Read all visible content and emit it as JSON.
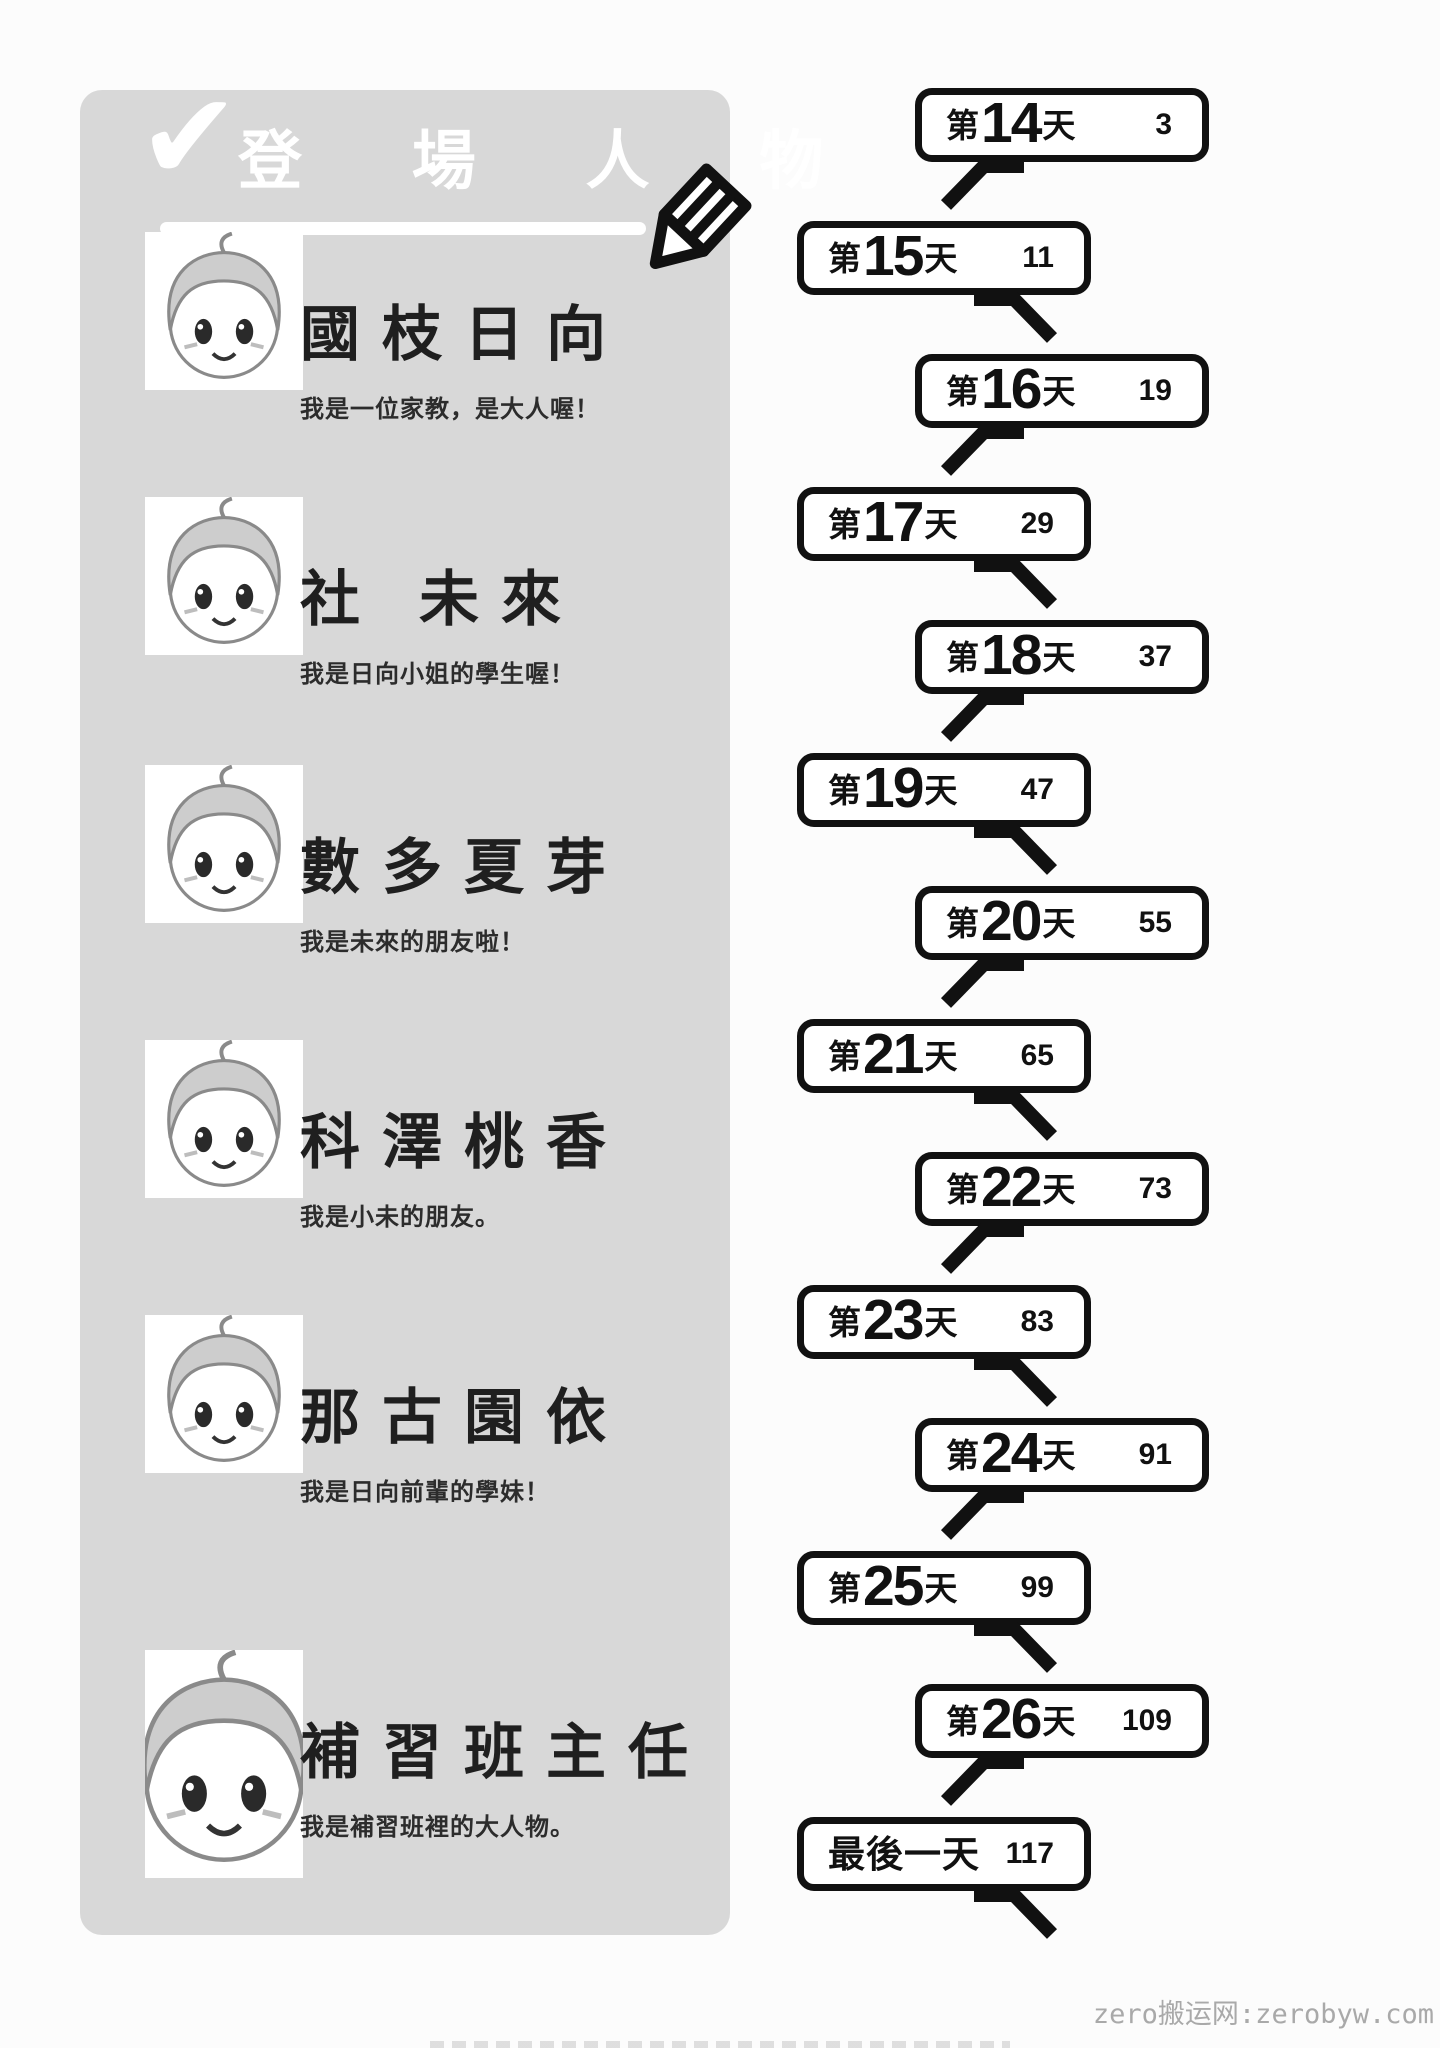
{
  "panel": {
    "title": "登 場 人 物",
    "check_glyph": "✔",
    "characters": [
      {
        "name": "國枝日向",
        "description": "我是一位家教，是大人喔！"
      },
      {
        "name": "社 未來",
        "description": "我是日向小姐的學生喔！"
      },
      {
        "name": "數多夏芽",
        "description": "我是未來的朋友啦！"
      },
      {
        "name": "科澤桃香",
        "description": "我是小未的朋友。"
      },
      {
        "name": "那古園依",
        "description": "我是日向前輩的學妹！"
      },
      {
        "name": "補習班主任",
        "description": "我是補習班裡的大人物。"
      }
    ]
  },
  "toc": {
    "entries": [
      {
        "prefix": "第",
        "number": "14",
        "suffix": "天",
        "page": "3"
      },
      {
        "prefix": "第",
        "number": "15",
        "suffix": "天",
        "page": "11"
      },
      {
        "prefix": "第",
        "number": "16",
        "suffix": "天",
        "page": "19"
      },
      {
        "prefix": "第",
        "number": "17",
        "suffix": "天",
        "page": "29"
      },
      {
        "prefix": "第",
        "number": "18",
        "suffix": "天",
        "page": "37"
      },
      {
        "prefix": "第",
        "number": "19",
        "suffix": "天",
        "page": "47"
      },
      {
        "prefix": "第",
        "number": "20",
        "suffix": "天",
        "page": "55"
      },
      {
        "prefix": "第",
        "number": "21",
        "suffix": "天",
        "page": "65"
      },
      {
        "prefix": "第",
        "number": "22",
        "suffix": "天",
        "page": "73"
      },
      {
        "prefix": "第",
        "number": "23",
        "suffix": "天",
        "page": "83"
      },
      {
        "prefix": "第",
        "number": "24",
        "suffix": "天",
        "page": "91"
      },
      {
        "prefix": "第",
        "number": "25",
        "suffix": "天",
        "page": "99"
      },
      {
        "prefix": "第",
        "number": "26",
        "suffix": "天",
        "page": "109"
      },
      {
        "label": "最後一天",
        "page": "117"
      }
    ]
  },
  "watermark": "zero搬运网:zerobyw.com",
  "colors": {
    "panel_bg": "#d8d8d8",
    "ink": "#111111",
    "watermark": "#a9a9a9"
  }
}
